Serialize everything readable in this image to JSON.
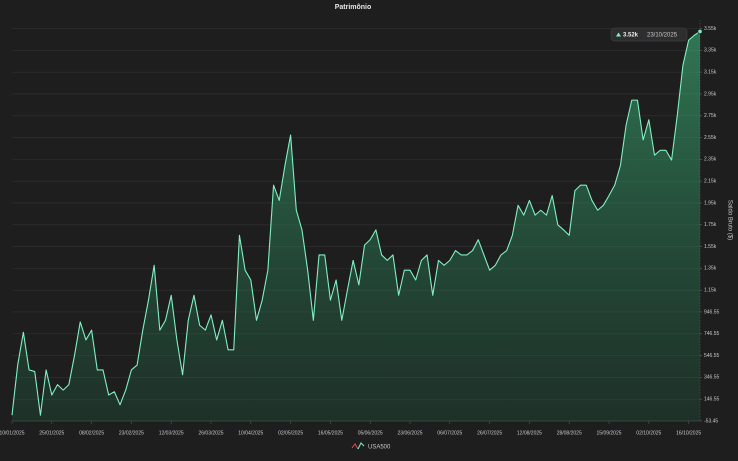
{
  "chart_data": {
    "type": "area",
    "title": "Patrimônio",
    "y_axis_label": "Saldo Bruto ($)",
    "annotations": {
      "value": "3.52k",
      "date": "23/10/2025"
    },
    "categories": [
      "10/01/2025",
      null,
      null,
      null,
      null,
      null,
      null,
      "25/01/2025",
      null,
      null,
      null,
      null,
      null,
      null,
      "08/02/2025",
      null,
      null,
      null,
      null,
      null,
      null,
      "23/02/2025",
      null,
      null,
      null,
      null,
      null,
      null,
      "12/03/2025",
      null,
      null,
      null,
      null,
      null,
      null,
      "26/03/2025",
      null,
      null,
      null,
      null,
      null,
      null,
      "10/04/2025",
      null,
      null,
      null,
      null,
      null,
      null,
      "02/05/2025",
      null,
      null,
      null,
      null,
      null,
      null,
      "16/05/2025",
      null,
      null,
      null,
      null,
      null,
      null,
      "05/06/2025",
      null,
      null,
      null,
      null,
      null,
      null,
      "23/06/2025",
      null,
      null,
      null,
      null,
      null,
      null,
      "06/07/2025",
      null,
      null,
      null,
      null,
      null,
      null,
      "26/07/2025",
      null,
      null,
      null,
      null,
      null,
      null,
      "12/08/2025",
      null,
      null,
      null,
      null,
      null,
      null,
      "28/08/2025",
      null,
      null,
      null,
      null,
      null,
      null,
      "15/09/2025",
      null,
      null,
      null,
      null,
      null,
      null,
      "02/10/2025",
      null,
      null,
      null,
      null,
      null,
      null,
      "16/10/2025",
      null,
      null
    ],
    "series": [
      {
        "name": "USA500",
        "color": "#7ff0c3",
        "values": [
          0,
          460,
          760,
          415,
          400,
          0,
          415,
          185,
          280,
          230,
          280,
          550,
          855,
          690,
          780,
          415,
          415,
          185,
          215,
          95,
          230,
          415,
          460,
          780,
          1055,
          1375,
          780,
          870,
          1100,
          690,
          370,
          870,
          1100,
          825,
          780,
          920,
          690,
          870,
          600,
          600,
          1650,
          1330,
          1240,
          870,
          1055,
          1330,
          2110,
          1970,
          2290,
          2570,
          1880,
          1700,
          1330,
          870,
          1470,
          1470,
          1055,
          1240,
          870,
          1150,
          1420,
          1195,
          1560,
          1610,
          1700,
          1470,
          1420,
          1470,
          1100,
          1330,
          1330,
          1240,
          1420,
          1470,
          1100,
          1420,
          1375,
          1420,
          1510,
          1470,
          1470,
          1510,
          1610,
          1470,
          1330,
          1375,
          1470,
          1510,
          1650,
          1925,
          1835,
          1970,
          1835,
          1880,
          1835,
          2015,
          1745,
          1700,
          1650,
          2060,
          2110,
          2110,
          1970,
          1880,
          1925,
          2015,
          2110,
          2290,
          2660,
          2890,
          2890,
          2525,
          2710,
          2385,
          2430,
          2430,
          2340,
          2750,
          3210,
          3440,
          3485,
          3520
        ]
      }
    ],
    "ylim": [
      -53.45,
      3625
    ],
    "yticks": [
      -53.45,
      146.55,
      346.55,
      546.55,
      746.55,
      946.55,
      {
        "value": 1146.55,
        "label": "1.15k"
      },
      {
        "value": 1346.55,
        "label": "1.35k"
      },
      {
        "value": 1546.55,
        "label": "1.55k"
      },
      {
        "value": 1746.55,
        "label": "1.75k"
      },
      {
        "value": 1946.55,
        "label": "1.95k"
      },
      {
        "value": 2146.55,
        "label": "2.15k"
      },
      {
        "value": 2346.55,
        "label": "2.35k"
      },
      {
        "value": 2546.55,
        "label": "2.55k"
      },
      {
        "value": 2746.55,
        "label": "2.75k"
      },
      {
        "value": 2946.55,
        "label": "2.95k"
      },
      {
        "value": 3146.55,
        "label": "3.15k"
      },
      {
        "value": 3346.55,
        "label": "3.35k"
      },
      {
        "value": 3546.55,
        "label": "3.55k"
      }
    ],
    "grid": true
  }
}
